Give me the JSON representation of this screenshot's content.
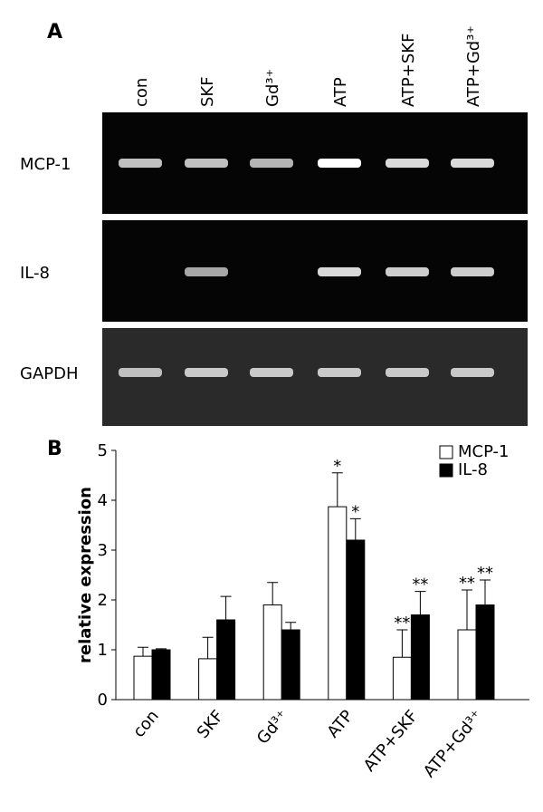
{
  "panel_a": {
    "label": "A",
    "lanes": [
      "con",
      "SKF",
      "Gd³⁺",
      "ATP",
      "ATP+SKF",
      "ATP+Gd³⁺"
    ],
    "rows": [
      "MCP-1",
      "IL-8",
      "GAPDH"
    ]
  },
  "chart_data": {
    "type": "bar",
    "panel_label": "B",
    "ylabel": "relative expression",
    "categories": [
      "con",
      "SKF",
      "Gd³⁺",
      "ATP",
      "ATP+SKF",
      "ATP+Gd³⁺"
    ],
    "series": [
      {
        "name": "MCP-1",
        "color": "#ffffff",
        "values": [
          0.87,
          0.82,
          1.9,
          3.87,
          0.85,
          1.4
        ],
        "errors": [
          0.18,
          0.43,
          0.45,
          0.68,
          0.55,
          0.8
        ],
        "significance": [
          null,
          null,
          null,
          "*",
          "**",
          "**"
        ]
      },
      {
        "name": "IL-8",
        "color": "#000000",
        "values": [
          1.0,
          1.6,
          1.4,
          3.2,
          1.7,
          1.9
        ],
        "errors": [
          0.02,
          0.47,
          0.15,
          0.43,
          0.47,
          0.5
        ],
        "significance": [
          null,
          null,
          null,
          "*",
          "**",
          "**"
        ]
      }
    ],
    "ylim": [
      0,
      5
    ],
    "yticks": [
      0,
      1,
      2,
      3,
      4,
      5
    ],
    "legend": "upper right"
  }
}
